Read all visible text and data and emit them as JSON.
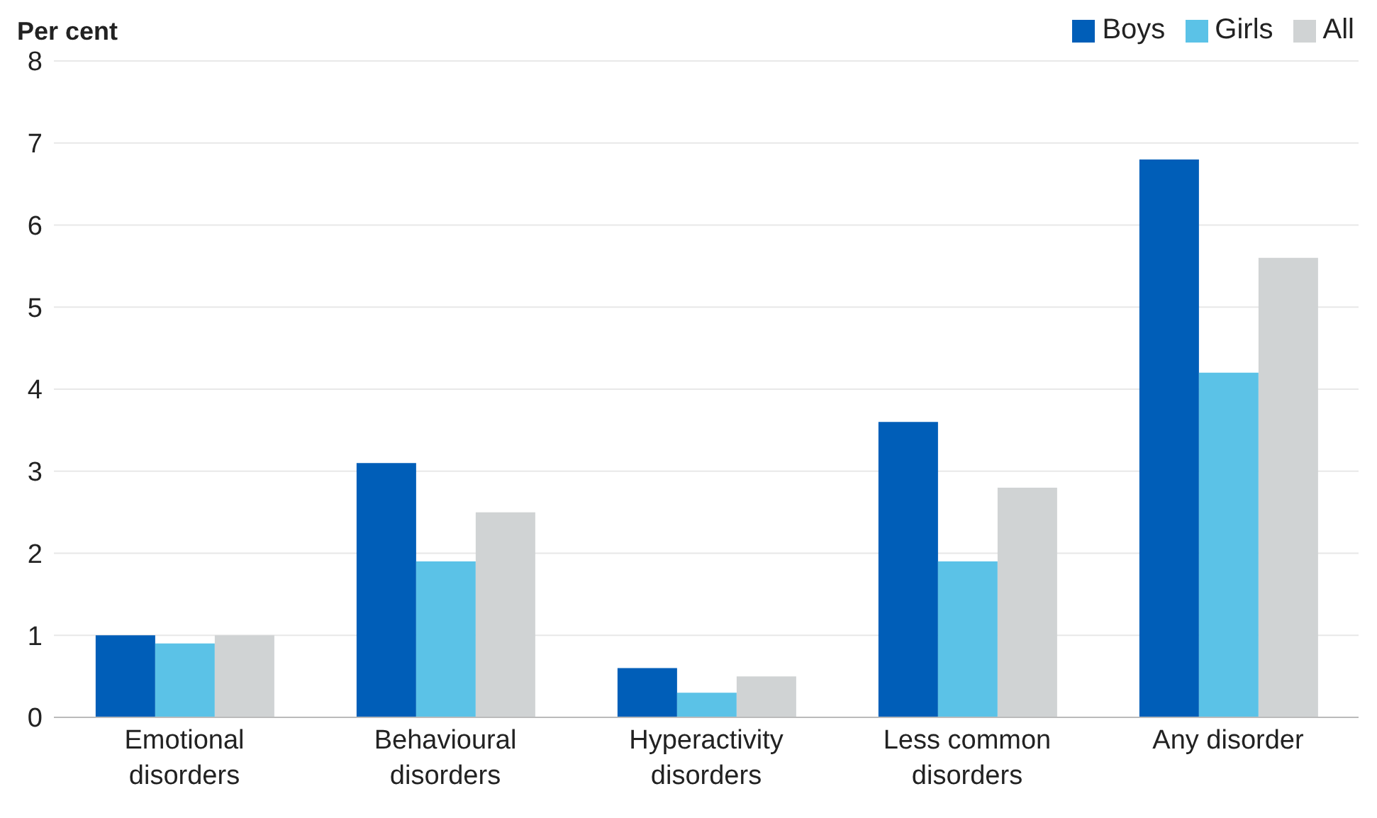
{
  "chart_data": {
    "type": "bar",
    "ylabel": "Per cent",
    "categories": [
      "Emotional disorders",
      "Behavioural disorders",
      "Hyperactivity disorders",
      "Less common disorders",
      "Any disorder"
    ],
    "series": [
      {
        "name": "Boys",
        "color": "#005eb8",
        "values": [
          1.0,
          3.1,
          0.6,
          3.6,
          6.8
        ]
      },
      {
        "name": "Girls",
        "color": "#5bc2e7",
        "values": [
          0.9,
          1.9,
          0.3,
          1.9,
          4.2
        ]
      },
      {
        "name": "All",
        "color": "#d0d3d4",
        "values": [
          1.0,
          2.5,
          0.5,
          2.8,
          5.6
        ]
      }
    ],
    "ylim": [
      0,
      8
    ],
    "yticks": [
      0,
      1,
      2,
      3,
      4,
      5,
      6,
      7,
      8
    ],
    "grid": "y",
    "legend": "top right"
  }
}
